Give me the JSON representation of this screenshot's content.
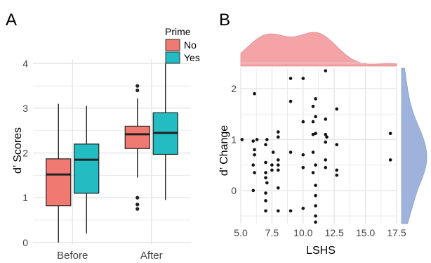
{
  "panels": {
    "a": {
      "label": "A"
    },
    "b": {
      "label": "B"
    }
  },
  "colors": {
    "no": "#f07a72",
    "yes": "#22bcc2",
    "density_top": "#f4a3a6",
    "density_right": "#9fb2db",
    "grid": "#e6e6e6",
    "points": "#111111",
    "text": "#1a1a1a"
  },
  "chart_data": [
    {
      "type": "box",
      "panel": "A",
      "xlabel": "",
      "ylabel": "d’ Scores",
      "categories": [
        "Before",
        "After"
      ],
      "ylim": [
        -0.05,
        4.1
      ],
      "yticks": [
        0,
        1,
        2,
        3,
        4
      ],
      "ytick_labels": [
        "0",
        "1",
        "2",
        "3",
        "4"
      ],
      "legend": {
        "title": "Prime",
        "position": "top-right",
        "entries": [
          "No",
          "Yes"
        ]
      },
      "series": [
        {
          "name": "No",
          "boxes": [
            {
              "category": "Before",
              "whisker_low": 0.0,
              "q1": 0.82,
              "median": 1.52,
              "q3": 1.87,
              "whisker_high": 3.1,
              "outliers": []
            },
            {
              "category": "After",
              "whisker_low": 1.45,
              "q1": 2.1,
              "median": 2.42,
              "q3": 2.6,
              "whisker_high": 3.22,
              "outliers": [
                3.5,
                3.4,
                1.0,
                0.85,
                0.75
              ]
            }
          ]
        },
        {
          "name": "Yes",
          "boxes": [
            {
              "category": "Before",
              "whisker_low": 0.2,
              "q1": 1.1,
              "median": 1.85,
              "q3": 2.2,
              "whisker_high": 3.05,
              "outliers": []
            },
            {
              "category": "After",
              "whisker_low": 0.95,
              "q1": 1.97,
              "median": 2.45,
              "q3": 2.9,
              "whisker_high": 4.0,
              "outliers": []
            }
          ]
        }
      ]
    },
    {
      "type": "scatter",
      "panel": "B",
      "xlabel": "LSHS",
      "ylabel": "d’ Change",
      "xlim": [
        5.0,
        17.5
      ],
      "ylim": [
        -0.65,
        2.4
      ],
      "xticks": [
        5.0,
        7.5,
        10.0,
        12.5,
        15.0,
        17.5
      ],
      "xtick_labels": [
        "5.0",
        "7.5",
        "10.0",
        "12.5",
        "15.0",
        "17.5"
      ],
      "yticks": [
        0,
        1,
        2
      ],
      "ytick_labels": [
        "0",
        "1",
        "2"
      ],
      "marginal_density": {
        "top": "LSHS",
        "right": "d’ Change"
      },
      "points": [
        [
          5.1,
          1.0
        ],
        [
          6.1,
          1.9
        ],
        [
          6.0,
          0.97
        ],
        [
          6.1,
          0.8
        ],
        [
          6.1,
          0.7
        ],
        [
          6.0,
          0.5
        ],
        [
          6.1,
          0.35
        ],
        [
          6.0,
          0.0
        ],
        [
          6.3,
          1.0
        ],
        [
          7.0,
          0.9
        ],
        [
          7.1,
          1.0
        ],
        [
          7.0,
          0.55
        ],
        [
          7.0,
          0.35
        ],
        [
          7.0,
          0.25
        ],
        [
          7.1,
          0.15
        ],
        [
          7.0,
          -0.05
        ],
        [
          7.0,
          -0.2
        ],
        [
          7.0,
          -0.4
        ],
        [
          7.6,
          0.75
        ],
        [
          7.5,
          0.5
        ],
        [
          7.5,
          0.4
        ],
        [
          8.0,
          0.6
        ],
        [
          8.0,
          0.5
        ],
        [
          8.0,
          0.4
        ],
        [
          8.0,
          0.05
        ],
        [
          8.0,
          -0.4
        ],
        [
          8.0,
          1.15
        ],
        [
          8.0,
          1.05
        ],
        [
          9.0,
          2.2
        ],
        [
          9.0,
          1.75
        ],
        [
          9.0,
          0.75
        ],
        [
          9.0,
          -0.4
        ],
        [
          10.0,
          2.2
        ],
        [
          10.0,
          1.35
        ],
        [
          10.0,
          0.7
        ],
        [
          10.0,
          0.45
        ],
        [
          10.0,
          -0.35
        ],
        [
          10.8,
          1.65
        ],
        [
          10.8,
          1.35
        ],
        [
          10.8,
          1.1
        ],
        [
          10.8,
          0.75
        ],
        [
          10.8,
          0.35
        ],
        [
          11.0,
          1.8
        ],
        [
          11.0,
          1.45
        ],
        [
          11.0,
          1.12
        ],
        [
          11.0,
          0.5
        ],
        [
          11.0,
          0.1
        ],
        [
          11.0,
          -0.1
        ],
        [
          11.0,
          -0.3
        ],
        [
          11.0,
          -0.5
        ],
        [
          11.0,
          -0.62
        ],
        [
          11.8,
          2.35
        ],
        [
          11.8,
          1.4
        ],
        [
          11.8,
          1.1
        ],
        [
          11.9,
          1.05
        ],
        [
          11.8,
          0.95
        ],
        [
          11.8,
          0.6
        ],
        [
          11.8,
          0.45
        ],
        [
          12.7,
          1.6
        ],
        [
          12.7,
          0.9
        ],
        [
          12.7,
          0.4
        ],
        [
          12.7,
          0.3
        ],
        [
          17.0,
          1.12
        ],
        [
          17.0,
          0.6
        ]
      ]
    }
  ]
}
